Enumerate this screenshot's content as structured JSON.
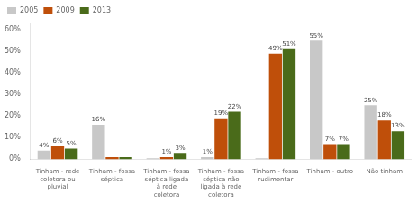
{
  "chart_data": {
    "type": "bar",
    "categories": [
      "Tinham - rede\ncoletora ou\npluvial",
      "Tinham - fossa\nséptica",
      "Tinham - fossa\nséptica ligada\nà rede\ncoletora",
      "Tinham - fossa\nséptica não\nligada à rede\ncoletora",
      "Tinham - fossa\nrudimentar",
      "Tinham - outro",
      "Não tinham"
    ],
    "series": [
      {
        "name": "2005",
        "color": "#c8c8c8",
        "values": [
          4,
          16,
          0.5,
          1,
          0.5,
          55,
          25
        ],
        "value_labels": [
          "4%",
          "16%",
          null,
          "1%",
          null,
          "55%",
          "25%"
        ]
      },
      {
        "name": "2009",
        "color": "#bf4f0a",
        "values": [
          6,
          1,
          1,
          19,
          49,
          7,
          18
        ],
        "value_labels": [
          "6%",
          null,
          "1%",
          "19%",
          "49%",
          "7%",
          "18%"
        ]
      },
      {
        "name": "2013",
        "color": "#4a6b1a",
        "values": [
          5,
          1,
          3,
          22,
          51,
          7,
          13
        ],
        "value_labels": [
          "5%",
          null,
          "3%",
          "22%",
          "51%",
          "7%",
          "13%"
        ]
      }
    ],
    "ylim": [
      0,
      63
    ],
    "yticks": [
      {
        "value": 0,
        "label": "0%"
      },
      {
        "value": 10,
        "label": "10%"
      },
      {
        "value": 20,
        "label": "20%"
      },
      {
        "value": 30,
        "label": "30%"
      },
      {
        "value": 40,
        "label": "40%"
      },
      {
        "value": 50,
        "label": "50%"
      },
      {
        "value": 60,
        "label": "60%"
      }
    ],
    "grid": false,
    "legend": "upper left",
    "data_labels": true
  }
}
